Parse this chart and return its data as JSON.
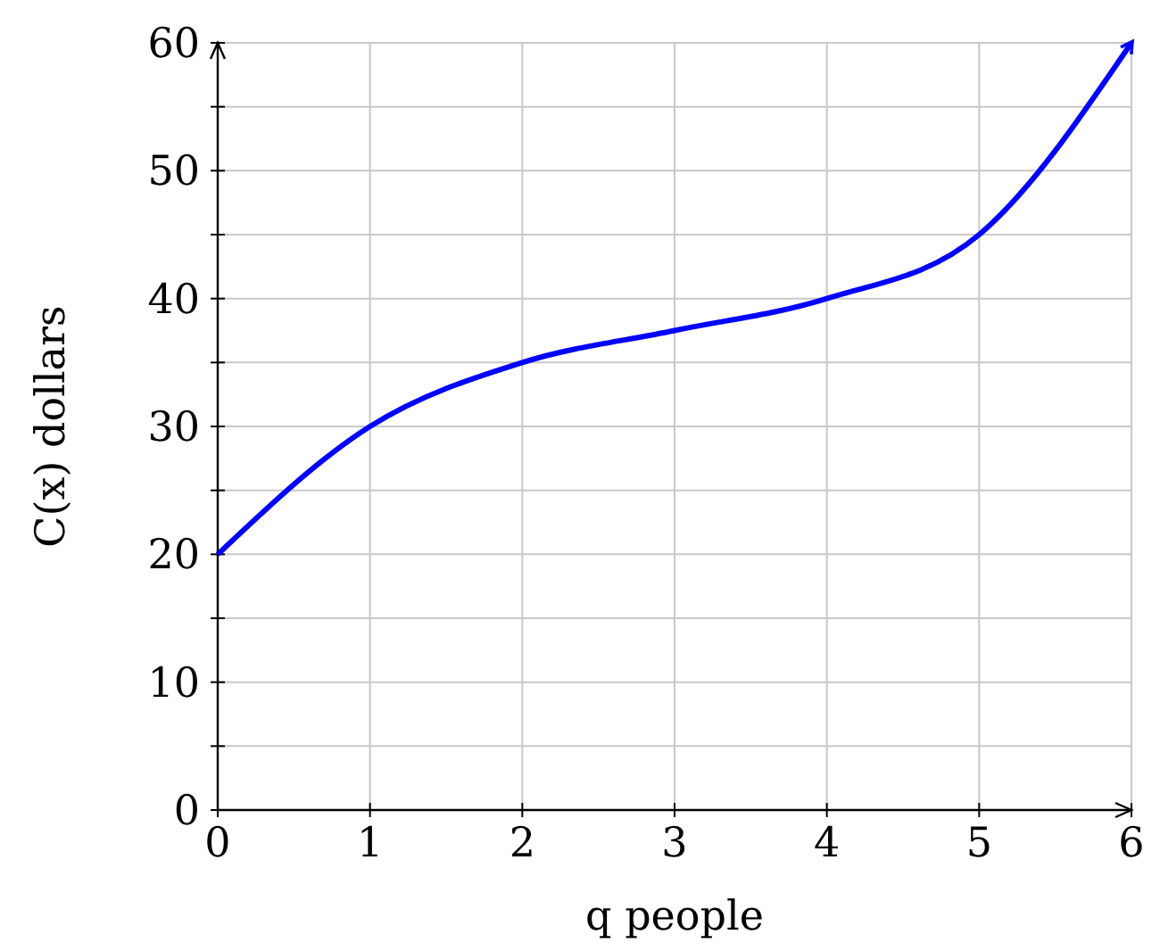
{
  "chart_data": {
    "type": "line",
    "xlabel": "q people",
    "ylabel": "C(x) dollars",
    "x": [
      0,
      1,
      2,
      3,
      4,
      5,
      6
    ],
    "series": [
      {
        "color": "#0000ff",
        "values": [
          20,
          30,
          35,
          37.5,
          40,
          45,
          60
        ]
      }
    ],
    "xlim": [
      0,
      6
    ],
    "xticks": [
      0,
      1,
      2,
      3,
      4,
      5,
      6
    ],
    "ylim": [
      0,
      60
    ],
    "yticks": [
      0,
      {
        "value": 5,
        "label": null
      },
      10,
      {
        "value": 15,
        "label": null
      },
      20,
      {
        "value": 25,
        "label": null
      },
      30,
      {
        "value": 35,
        "label": null
      },
      40,
      {
        "value": 45,
        "label": null
      },
      50,
      {
        "value": 55,
        "label": null
      },
      60
    ],
    "grid": true
  }
}
